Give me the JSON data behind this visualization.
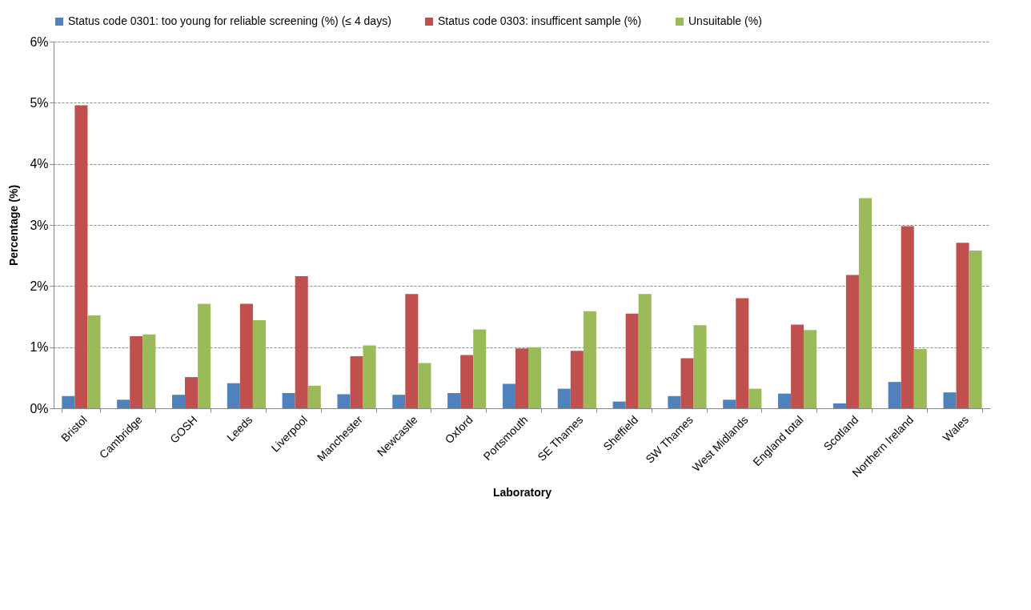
{
  "chart_data": {
    "type": "bar",
    "xlabel": "Laboratory",
    "ylabel": "Percentage (%)",
    "categories": [
      "Bristol",
      "Cambridge",
      "GOSH",
      "Leeds",
      "Liverpool",
      "Manchester",
      "Newcastle",
      "Oxford",
      "Portsmouth",
      "SE Thames",
      "Sheffield",
      "SW Thames",
      "West Midlands",
      "England total",
      "Scotland",
      "Northern Ireland",
      "Wales"
    ],
    "series": [
      {
        "name": "Status code 0301: too young for reliable screening (%) (≤ 4 days)",
        "color": "#4f81bd",
        "values": [
          0.2,
          0.14,
          0.22,
          0.41,
          0.25,
          0.23,
          0.22,
          0.25,
          0.4,
          0.32,
          0.11,
          0.2,
          0.14,
          0.24,
          0.08,
          0.43,
          0.26
        ]
      },
      {
        "name": "Status code 0303: insufficent sample (%)",
        "color": "#c0504d",
        "values": [
          4.96,
          1.18,
          0.51,
          1.71,
          2.16,
          0.85,
          1.87,
          0.87,
          0.98,
          0.94,
          1.55,
          0.82,
          1.8,
          1.37,
          2.18,
          2.98,
          2.71
        ]
      },
      {
        "name": "Unsuitable (%)",
        "color": "#9bbb59",
        "values": [
          1.52,
          1.21,
          1.71,
          1.44,
          0.37,
          1.03,
          0.74,
          1.29,
          1.0,
          1.59,
          1.87,
          1.36,
          0.32,
          1.28,
          3.44,
          0.97,
          2.58
        ]
      }
    ],
    "ylim": [
      0,
      6
    ],
    "yticks": [
      {
        "value": 0,
        "label": "0%"
      },
      {
        "value": 1,
        "label": "1%"
      },
      {
        "value": 2,
        "label": "2%"
      },
      {
        "value": 3,
        "label": "3%"
      },
      {
        "value": 4,
        "label": "4%"
      },
      {
        "value": 5,
        "label": "5%"
      },
      {
        "value": 6,
        "label": "6%"
      }
    ],
    "grid": "y",
    "legend": "top"
  }
}
